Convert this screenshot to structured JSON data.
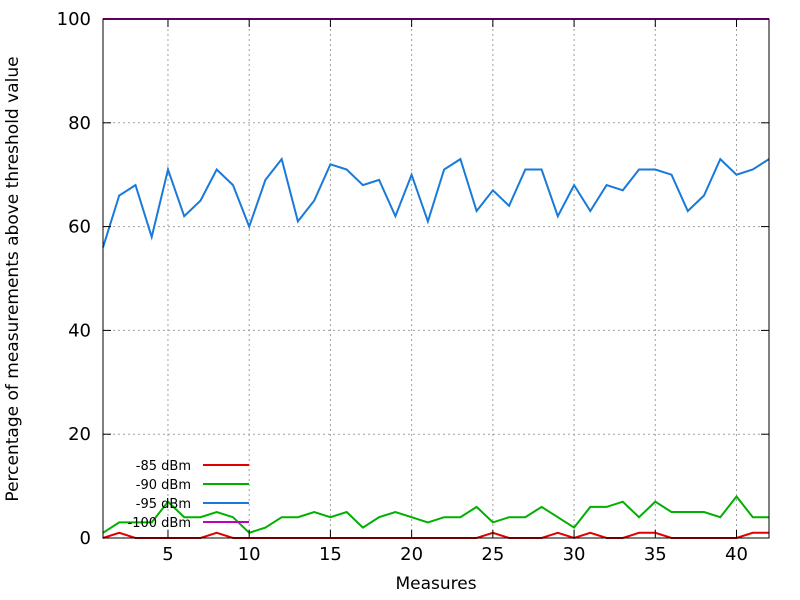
{
  "chart_data": {
    "type": "line",
    "title": "",
    "xlabel": "Measures",
    "ylabel": "Percentage of measurements above threshold value",
    "xlim": [
      1,
      42
    ],
    "ylim": [
      0,
      100
    ],
    "x_ticks": [
      5,
      10,
      15,
      20,
      25,
      30,
      35,
      40
    ],
    "y_ticks": [
      0,
      20,
      40,
      60,
      80,
      100
    ],
    "grid": true,
    "legend_position": "bottom-left",
    "x": [
      1,
      2,
      3,
      4,
      5,
      6,
      7,
      8,
      9,
      10,
      11,
      12,
      13,
      14,
      15,
      16,
      17,
      18,
      19,
      20,
      21,
      22,
      23,
      24,
      25,
      26,
      27,
      28,
      29,
      30,
      31,
      32,
      33,
      34,
      35,
      36,
      37,
      38,
      39,
      40,
      41,
      42
    ],
    "series": [
      {
        "name": "-85 dBm",
        "color": "#e00000",
        "values": [
          0,
          1,
          0,
          0,
          0,
          0,
          0,
          1,
          0,
          0,
          0,
          0,
          0,
          0,
          0,
          0,
          0,
          0,
          0,
          0,
          0,
          0,
          0,
          0,
          1,
          0,
          0,
          0,
          1,
          0,
          1,
          0,
          0,
          1,
          1,
          0,
          0,
          0,
          0,
          0,
          1,
          1
        ]
      },
      {
        "name": "-90 dBm",
        "color": "#00b000",
        "values": [
          1,
          3,
          3,
          3,
          7,
          4,
          4,
          5,
          4,
          1,
          2,
          4,
          4,
          5,
          4,
          5,
          2,
          4,
          5,
          4,
          3,
          4,
          4,
          6,
          3,
          4,
          4,
          6,
          4,
          2,
          6,
          6,
          7,
          4,
          7,
          5,
          5,
          5,
          4,
          8,
          4,
          4
        ]
      },
      {
        "name": "-95 dBm",
        "color": "#1a7ad9",
        "values": [
          56,
          66,
          68,
          58,
          71,
          62,
          65,
          71,
          68,
          60,
          69,
          73,
          61,
          65,
          72,
          71,
          68,
          69,
          62,
          70,
          61,
          71,
          73,
          63,
          67,
          64,
          71,
          71,
          62,
          68,
          63,
          68,
          67,
          71,
          71,
          70,
          63,
          66,
          73,
          70,
          71,
          73
        ]
      },
      {
        "name": "-100 dBm",
        "color": "#c000c0",
        "values": [
          100,
          100,
          100,
          100,
          100,
          100,
          100,
          100,
          100,
          100,
          100,
          100,
          100,
          100,
          100,
          100,
          100,
          100,
          100,
          100,
          100,
          100,
          100,
          100,
          100,
          100,
          100,
          100,
          100,
          100,
          100,
          100,
          100,
          100,
          100,
          100,
          100,
          100,
          100,
          100,
          100,
          100
        ]
      }
    ]
  }
}
